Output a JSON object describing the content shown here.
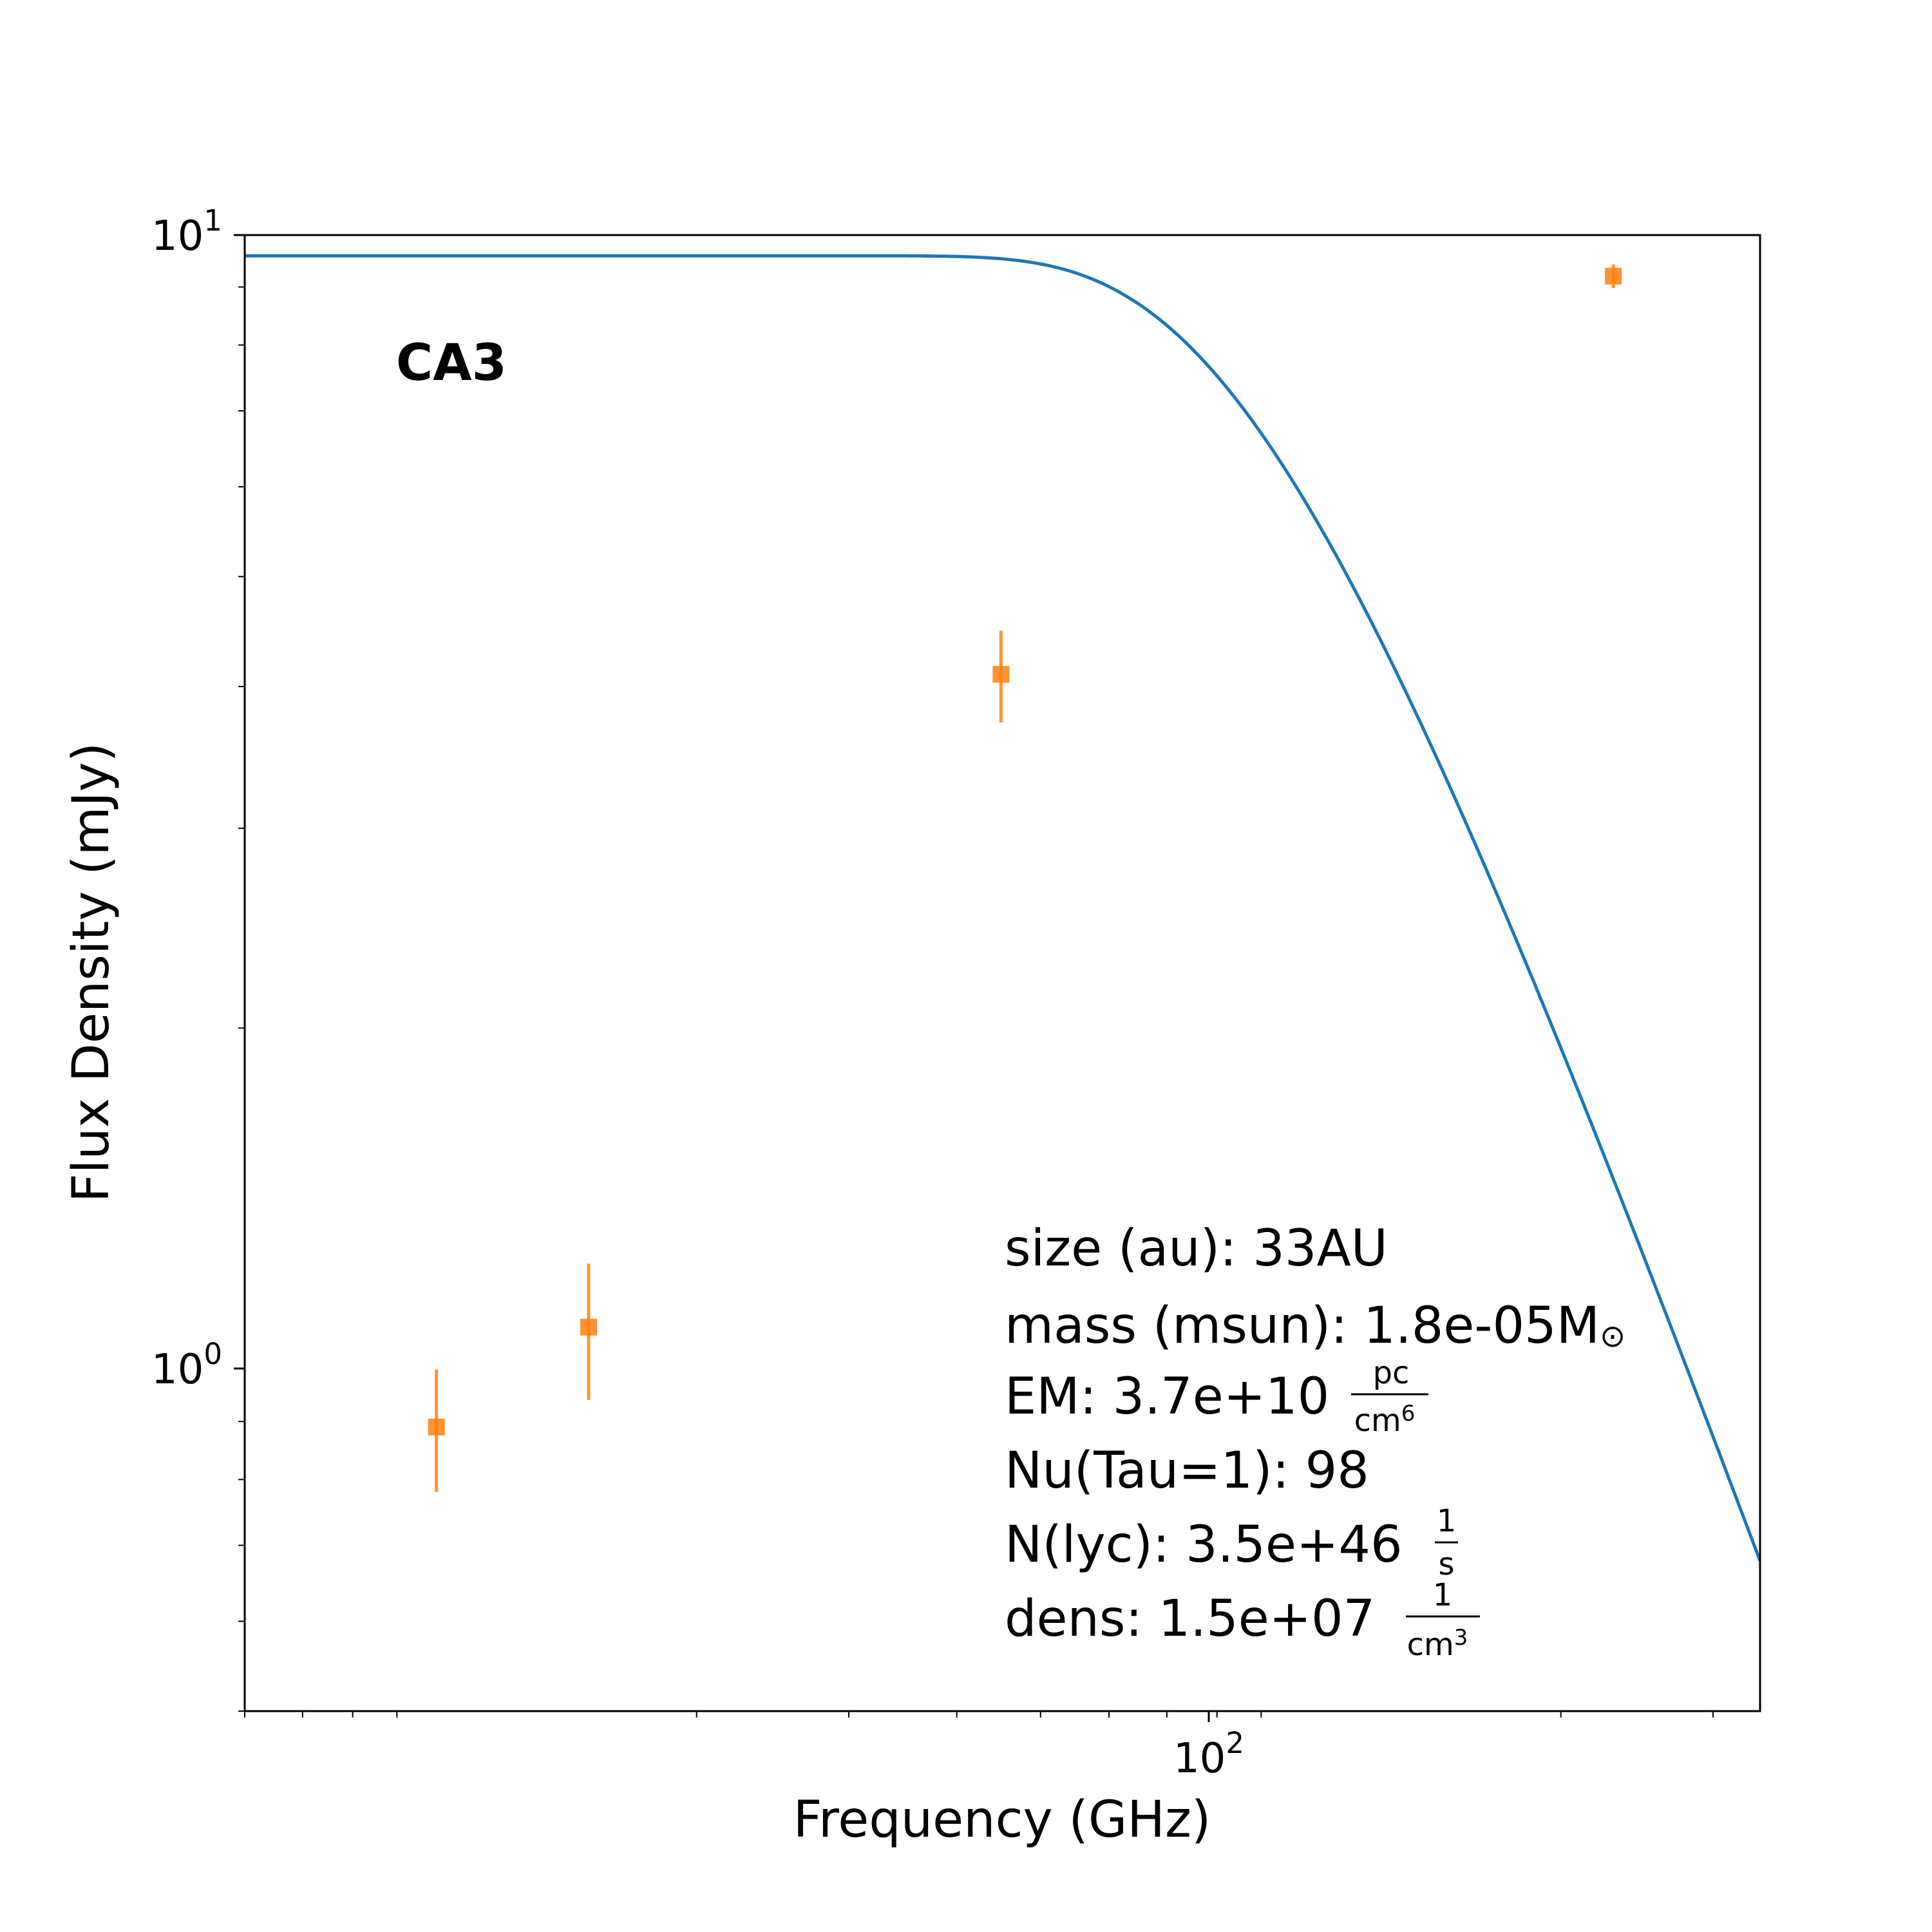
{
  "chart_data": {
    "type": "scatter",
    "title": "CA3",
    "xlabel": "Frequency (GHz)",
    "ylabel": "Flux Density (mJy)",
    "xscale": "log",
    "yscale": "log",
    "xlim": [
      6.0,
      340.0
    ],
    "ylim": [
      0.5,
      10.0
    ],
    "grid": false,
    "x_tick_labels": [
      {
        "base": "10",
        "exp": "2"
      }
    ],
    "y_tick_labels": [
      {
        "base": "10",
        "exp": "0"
      },
      {
        "base": "10",
        "exp": "1"
      }
    ],
    "series": [
      {
        "kind": "errorbar",
        "marker": "square",
        "color": "#ff7f0e",
        "points": [
          {
            "x": 10.0,
            "y": 0.89,
            "yerr": 0.11
          },
          {
            "x": 15.0,
            "y": 1.09,
            "yerr": 0.15
          },
          {
            "x": 45.0,
            "y": 4.1,
            "yerr": 0.38
          },
          {
            "x": 230.0,
            "y": 9.2,
            "yerr": 0.22
          }
        ]
      },
      {
        "kind": "model",
        "color": "#1f77b4",
        "x_turnover": 98
      }
    ],
    "annotations": {
      "size_text": "size (au): 33AU",
      "mass_text": "mass (msun): 1.8e-05M",
      "mass_symbol": "⊙",
      "em_text": "EM: 3.7e+10",
      "em_unit_num": "pc",
      "em_unit_den": "cm",
      "em_unit_den_exp": "6",
      "nu_text": "Nu(Tau=1): 98",
      "nlyc_text": "N(lyc): 3.5e+46",
      "nlyc_unit_num": "1",
      "nlyc_unit_den": "s",
      "dens_text": "dens: 1.5e+07",
      "dens_unit_num": "1",
      "dens_unit_den": "cm",
      "dens_unit_den_exp": "3"
    }
  }
}
